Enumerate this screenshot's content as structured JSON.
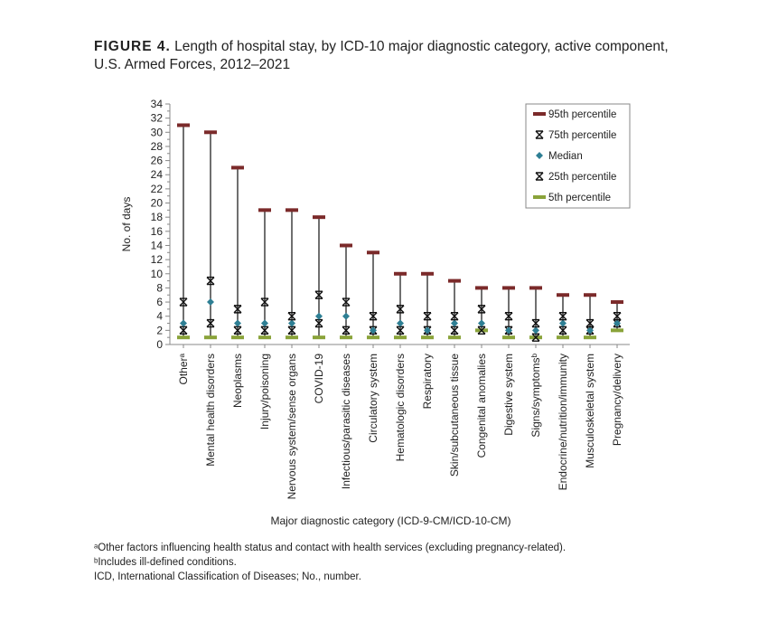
{
  "title": {
    "label": "FIGURE 4.",
    "text": "Length of hospital stay, by ICD-10 major diagnostic category, active component, U.S. Armed Forces, 2012–2021"
  },
  "chart_data": {
    "type": "scatter",
    "ylabel": "No. of days",
    "xlabel": "Major diagnostic category (ICD-9-CM/ICD-10-CM)",
    "ylim": [
      0,
      34
    ],
    "yticks": [
      "0",
      "2",
      "4",
      "6",
      "8",
      "10",
      "12",
      "14",
      "16",
      "18",
      "20",
      "22",
      "24",
      "26",
      "28",
      "30",
      "32",
      "34"
    ],
    "legend_position": "top-right",
    "categories": [
      "Otherᵃ",
      "Mental health disorders",
      "Neoplasms",
      "Injury/poisoning",
      "Nervous system/sense organs",
      "COVID-19",
      "Infectious/parasitic diseases",
      "Circulatory system",
      "Hematologic disorders",
      "Respiratory",
      "Skin/subcutaneous tissue",
      "Congenital anomalies",
      "Digestive system",
      "Signs/symptomsᵇ",
      "Endocrine/nutrition/immunity",
      "Musculoskeletal system",
      "Pregnancy/delivery"
    ],
    "series": [
      {
        "name": "95th percentile",
        "color": "#7b2a2a",
        "marker": "dash",
        "values": [
          31,
          30,
          25,
          19,
          19,
          18,
          14,
          13,
          10,
          10,
          9,
          8,
          8,
          8,
          7,
          7,
          6
        ]
      },
      {
        "name": "75th percentile",
        "color": "#111111",
        "marker": "x",
        "values": [
          6,
          9,
          5,
          6,
          4,
          7,
          6,
          4,
          5,
          4,
          4,
          5,
          4,
          3,
          4,
          3,
          4
        ]
      },
      {
        "name": "Median",
        "color": "#2e7f94",
        "marker": "diamond",
        "values": [
          3,
          6,
          3,
          3,
          3,
          4,
          4,
          2,
          3,
          2,
          3,
          3,
          2,
          2,
          3,
          2,
          3
        ]
      },
      {
        "name": "25th percentile",
        "color": "#111111",
        "marker": "x",
        "values": [
          2,
          3,
          2,
          2,
          2,
          3,
          2,
          2,
          2,
          2,
          2,
          2,
          2,
          1,
          2,
          2,
          3
        ]
      },
      {
        "name": "5th percentile",
        "color": "#8aa33a",
        "marker": "dash",
        "values": [
          1,
          1,
          1,
          1,
          1,
          1,
          1,
          1,
          1,
          1,
          1,
          2,
          1,
          1,
          1,
          1,
          2
        ]
      }
    ]
  },
  "footnotes": [
    "ᵃOther factors influencing health status and contact with health services (excluding pregnancy-related).",
    "ᵇIncludes ill-defined conditions.",
    "ICD, International Classification of Diseases; No., number."
  ]
}
